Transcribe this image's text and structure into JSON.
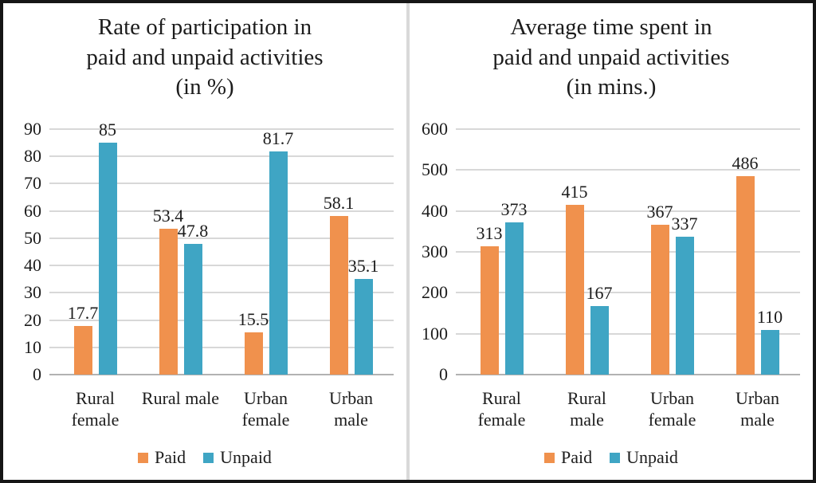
{
  "figure": {
    "border_color": "#161616",
    "divider_color": "#d9d9d9",
    "background": "#ffffff"
  },
  "colors": {
    "paid": "#f0914d",
    "unpaid": "#3fa5c4",
    "gridline": "#d8d8d8",
    "axis_line": "#b2b2b2",
    "text": "#1c1c1c"
  },
  "chart_data": [
    {
      "type": "bar",
      "title": "Rate of participation in paid and unpaid activities (in %)",
      "title_lines": [
        "Rate of participation in",
        "paid and unpaid activities",
        "(in %)"
      ],
      "categories": [
        "Rural female",
        "Rural male",
        "Urban female",
        "Urban male"
      ],
      "category_label_lines": [
        [
          "Rural",
          "female"
        ],
        [
          "Rural male"
        ],
        [
          "Urban",
          "female"
        ],
        [
          "Urban",
          "male"
        ]
      ],
      "series": [
        {
          "name": "Paid",
          "color_key": "paid",
          "values": [
            17.7,
            53.4,
            15.5,
            58.1
          ],
          "labels": [
            "17.7",
            "53.4",
            "15.5",
            "58.1"
          ]
        },
        {
          "name": "Unpaid",
          "color_key": "unpaid",
          "values": [
            85,
            47.8,
            81.7,
            35.1
          ],
          "labels": [
            "85",
            "47.8",
            "81.7",
            "35.1"
          ]
        }
      ],
      "xlabel": "",
      "ylabel": "",
      "ylim": [
        0,
        90
      ],
      "yticks": [
        0,
        10,
        20,
        30,
        40,
        50,
        60,
        70,
        80,
        90
      ],
      "ytick_labels": [
        "0",
        "10",
        "20",
        "30",
        "40",
        "50",
        "60",
        "70",
        "80",
        "90"
      ],
      "grid": true,
      "legend_position": "bottom"
    },
    {
      "type": "bar",
      "title": "Average time spent in paid and unpaid activities (in mins.)",
      "title_lines": [
        "Average time spent in",
        "paid and unpaid activities",
        "(in mins.)"
      ],
      "categories": [
        "Rural female",
        "Rural male",
        "Urban female",
        "Urban male"
      ],
      "category_label_lines": [
        [
          "Rural",
          "female"
        ],
        [
          "Rural",
          "male"
        ],
        [
          "Urban",
          "female"
        ],
        [
          "Urban",
          "male"
        ]
      ],
      "series": [
        {
          "name": "Paid",
          "color_key": "paid",
          "values": [
            313,
            415,
            367,
            486
          ],
          "labels": [
            "313",
            "415",
            "367",
            "486"
          ]
        },
        {
          "name": "Unpaid",
          "color_key": "unpaid",
          "values": [
            373,
            167,
            337,
            110
          ],
          "labels": [
            "373",
            "167",
            "337",
            "110"
          ]
        }
      ],
      "xlabel": "",
      "ylabel": "",
      "ylim": [
        0,
        600
      ],
      "yticks": [
        0,
        100,
        200,
        300,
        400,
        500,
        600
      ],
      "ytick_labels": [
        "0",
        "100",
        "200",
        "300",
        "400",
        "500",
        "600"
      ],
      "grid": true,
      "legend_position": "bottom"
    }
  ]
}
